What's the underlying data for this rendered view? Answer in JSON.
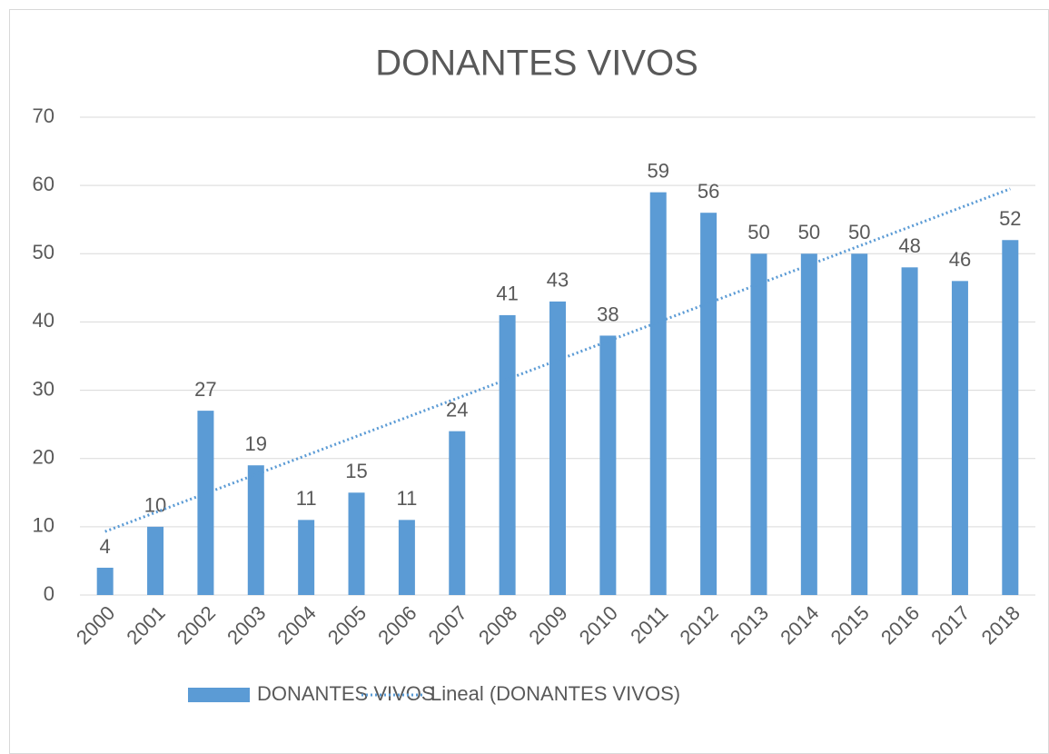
{
  "chart_data": {
    "type": "bar",
    "title": "DONANTES VIVOS",
    "categories": [
      "2000",
      "2001",
      "2002",
      "2003",
      "2004",
      "2005",
      "2006",
      "2007",
      "2008",
      "2009",
      "2010",
      "2011",
      "2012",
      "2013",
      "2014",
      "2015",
      "2016",
      "2017",
      "2018"
    ],
    "series": [
      {
        "name": "DONANTES VIVOS",
        "color": "#5b9bd5",
        "values": [
          4,
          10,
          27,
          19,
          11,
          15,
          11,
          24,
          41,
          43,
          38,
          59,
          56,
          50,
          50,
          50,
          48,
          46,
          52
        ]
      }
    ],
    "trendline": {
      "name": "Lineal (DONANTES VIVOS)",
      "color": "#5b9bd5",
      "values": [
        9.3,
        59.5
      ]
    },
    "ylim": [
      0,
      70
    ],
    "yticks": [
      0,
      10,
      20,
      30,
      40,
      50,
      60,
      70
    ],
    "grid": true,
    "legend": "bottom"
  }
}
